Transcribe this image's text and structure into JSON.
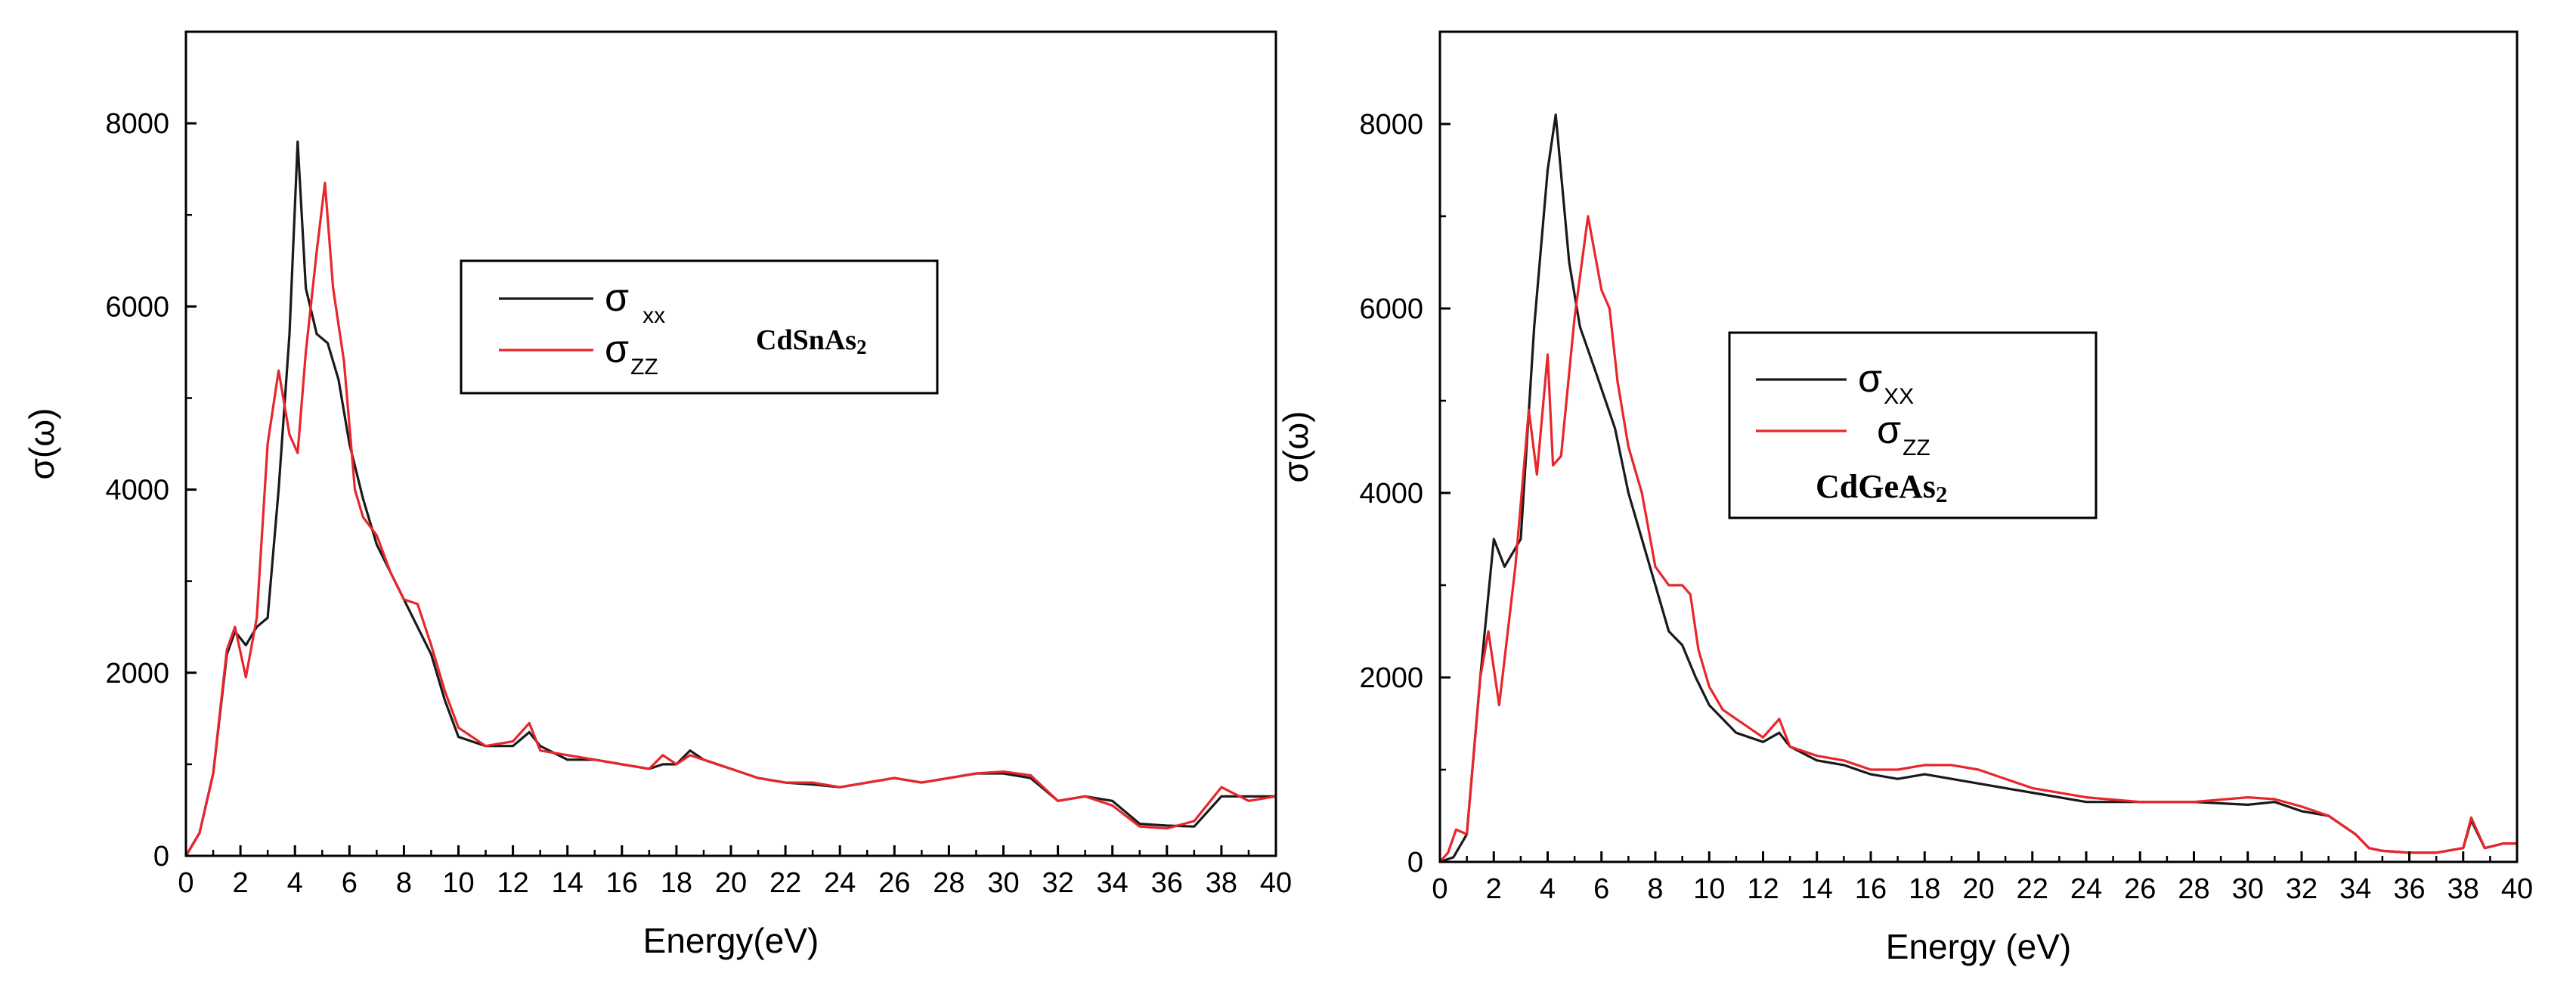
{
  "chart_data": [
    {
      "type": "line",
      "id": "left",
      "xlabel": "Energy(eV)",
      "ylabel": "σ(ω)",
      "xlim": [
        0,
        40
      ],
      "ylim": [
        0,
        9000
      ],
      "xticks": [
        0,
        2,
        4,
        6,
        8,
        10,
        12,
        14,
        16,
        18,
        20,
        22,
        24,
        26,
        28,
        30,
        32,
        34,
        36,
        38,
        40
      ],
      "yticks": [
        0,
        2000,
        4000,
        6000,
        8000
      ],
      "legend": {
        "placement": "upper-center",
        "entries": [
          {
            "symbol": "σ",
            "sub": "xx"
          },
          {
            "symbol": "σ",
            "sub": "ZZ"
          }
        ]
      },
      "compound": {
        "main": "CdSnAs",
        "sub": "2"
      },
      "colors": {
        "xx": "#1a1a1a",
        "zz": "#e8262b"
      },
      "series": [
        {
          "name": "σxx",
          "color": "#1a1a1a",
          "x": [
            0,
            0.5,
            1.0,
            1.5,
            1.8,
            2.2,
            2.6,
            3.0,
            3.4,
            3.8,
            4.1,
            4.4,
            4.8,
            5.2,
            5.6,
            6.0,
            6.5,
            7.0,
            7.5,
            8.0,
            8.5,
            9.0,
            9.5,
            10,
            11,
            12,
            12.6,
            13,
            14,
            15,
            16,
            17,
            17.5,
            18,
            18.5,
            19,
            20,
            21,
            22,
            23,
            24,
            25,
            26,
            27,
            28,
            29,
            30,
            31,
            32,
            33,
            34,
            35,
            36,
            37,
            38,
            39,
            40
          ],
          "y": [
            0,
            250,
            900,
            2200,
            2450,
            2300,
            2500,
            2600,
            4000,
            5700,
            7800,
            6200,
            5700,
            5600,
            5200,
            4500,
            3900,
            3400,
            3100,
            2800,
            2500,
            2200,
            1700,
            1300,
            1200,
            1200,
            1350,
            1200,
            1050,
            1050,
            1000,
            950,
            1000,
            1000,
            1150,
            1050,
            950,
            850,
            800,
            780,
            750,
            800,
            850,
            800,
            850,
            900,
            900,
            850,
            600,
            650,
            600,
            350,
            330,
            320,
            650,
            650,
            650
          ]
        },
        {
          "name": "σzz",
          "color": "#e8262b",
          "x": [
            0,
            0.5,
            1.0,
            1.5,
            1.8,
            2.2,
            2.6,
            3.0,
            3.4,
            3.8,
            4.1,
            4.4,
            4.8,
            5.1,
            5.4,
            5.8,
            6.2,
            6.5,
            7.0,
            7.5,
            8.0,
            8.5,
            9.0,
            9.5,
            10,
            11,
            12,
            12.6,
            13,
            14,
            15,
            16,
            17,
            17.5,
            18,
            18.5,
            19,
            20,
            21,
            22,
            23,
            24,
            25,
            26,
            27,
            28,
            29,
            30,
            31,
            32,
            33,
            34,
            35,
            36,
            37,
            38,
            39,
            40
          ],
          "y": [
            0,
            250,
            900,
            2250,
            2500,
            1950,
            2600,
            4500,
            5300,
            4600,
            4400,
            5500,
            6600,
            7350,
            6200,
            5400,
            4000,
            3700,
            3500,
            3100,
            2800,
            2750,
            2300,
            1800,
            1400,
            1200,
            1250,
            1450,
            1150,
            1100,
            1050,
            1000,
            950,
            1100,
            1000,
            1100,
            1050,
            950,
            850,
            800,
            800,
            750,
            800,
            850,
            800,
            850,
            900,
            920,
            880,
            600,
            650,
            550,
            320,
            300,
            380,
            750,
            600,
            650
          ]
        }
      ]
    },
    {
      "type": "line",
      "id": "right",
      "xlabel": "Energy (eV)",
      "ylabel": "σ(ω)",
      "xlim": [
        0,
        40
      ],
      "ylim": [
        0,
        9000
      ],
      "xticks": [
        0,
        2,
        4,
        6,
        8,
        10,
        12,
        14,
        16,
        18,
        20,
        22,
        24,
        26,
        28,
        30,
        32,
        34,
        36,
        38,
        40
      ],
      "yticks": [
        0,
        2000,
        4000,
        6000,
        8000
      ],
      "legend": {
        "placement": "center-right",
        "entries": [
          {
            "symbol": "σ",
            "sub": "XX"
          },
          {
            "symbol": "σ",
            "sub": "ZZ"
          }
        ]
      },
      "compound": {
        "main": "CdGeAs",
        "sub": "2"
      },
      "colors": {
        "xx": "#1a1a1a",
        "zz": "#e8262b"
      },
      "series": [
        {
          "name": "σxx",
          "color": "#1a1a1a",
          "x": [
            0,
            0.5,
            1.0,
            1.5,
            2.0,
            2.4,
            3.0,
            3.5,
            4.0,
            4.3,
            4.8,
            5.2,
            5.8,
            6.5,
            7.0,
            7.5,
            8.0,
            8.5,
            9.0,
            9.5,
            10,
            11,
            12,
            12.6,
            13,
            14,
            15,
            16,
            17,
            18,
            19,
            20,
            22,
            24,
            26,
            28,
            30,
            31,
            32,
            33,
            34,
            34.5,
            35,
            36,
            37,
            38,
            38.3,
            38.8,
            39.5,
            40
          ],
          "y": [
            0,
            50,
            300,
            2000,
            3500,
            3200,
            3500,
            5800,
            7500,
            8100,
            6500,
            5800,
            5300,
            4700,
            4000,
            3500,
            3000,
            2500,
            2350,
            2000,
            1700,
            1400,
            1300,
            1400,
            1250,
            1100,
            1050,
            950,
            900,
            950,
            900,
            850,
            750,
            650,
            650,
            650,
            620,
            650,
            550,
            500,
            300,
            150,
            120,
            100,
            100,
            150,
            450,
            150,
            200,
            200
          ]
        },
        {
          "name": "σzz",
          "color": "#e8262b",
          "x": [
            0,
            0.3,
            0.6,
            1.0,
            1.5,
            1.8,
            2.2,
            2.8,
            3.3,
            3.6,
            4.0,
            4.2,
            4.5,
            5.0,
            5.5,
            6.0,
            6.3,
            6.6,
            7.0,
            7.5,
            8.0,
            8.5,
            9.0,
            9.3,
            9.6,
            10,
            10.5,
            11,
            12,
            12.6,
            13,
            14,
            15,
            16,
            17,
            18,
            19,
            20,
            22,
            24,
            26,
            28,
            30,
            31,
            32,
            33,
            34,
            34.5,
            35,
            36,
            37,
            38,
            38.3,
            38.8,
            39.5,
            40
          ],
          "y": [
            0,
            100,
            350,
            300,
            2000,
            2500,
            1700,
            3200,
            4900,
            4200,
            5500,
            4300,
            4400,
            5900,
            7000,
            6200,
            6000,
            5200,
            4500,
            4000,
            3200,
            3000,
            3000,
            2900,
            2300,
            1900,
            1650,
            1550,
            1350,
            1550,
            1250,
            1150,
            1100,
            1000,
            1000,
            1050,
            1050,
            1000,
            800,
            700,
            650,
            650,
            700,
            680,
            600,
            500,
            300,
            150,
            120,
            100,
            100,
            150,
            480,
            150,
            200,
            200
          ]
        }
      ]
    }
  ]
}
